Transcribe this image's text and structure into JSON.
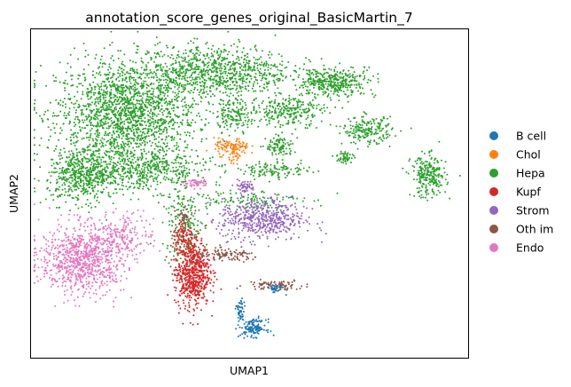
{
  "chart_data": {
    "type": "scatter",
    "title": "annotation_score_genes_original_BasicMartin_7",
    "xlabel": "UMAP1",
    "ylabel": "UMAP2",
    "xlim": [
      0,
      100
    ],
    "ylim": [
      0,
      100
    ],
    "ticks": false,
    "grid": false,
    "legend_position": "right",
    "categories": [
      {
        "name": "B cell",
        "color": "#1f77b4"
      },
      {
        "name": "Chol",
        "color": "#ff7f0e"
      },
      {
        "name": "Hepa",
        "color": "#2ca02c"
      },
      {
        "name": "Kupf",
        "color": "#d62728"
      },
      {
        "name": "Strom",
        "color": "#9467bd"
      },
      {
        "name": "Oth im",
        "color": "#8c564b"
      },
      {
        "name": "Endo",
        "color": "#e377c2"
      }
    ],
    "clusters": [
      {
        "category": "Hepa",
        "cx": 22,
        "cy": 74,
        "sx": 10,
        "sy": 10,
        "n": 1800
      },
      {
        "category": "Hepa",
        "cx": 42,
        "cy": 87,
        "sx": 11,
        "sy": 5,
        "n": 900
      },
      {
        "category": "Hepa",
        "cx": 12,
        "cy": 55,
        "sx": 5,
        "sy": 5,
        "n": 500
      },
      {
        "category": "Hepa",
        "cx": 26,
        "cy": 57,
        "sx": 9,
        "sy": 4,
        "n": 500
      },
      {
        "category": "Hepa",
        "cx": 47,
        "cy": 74,
        "sx": 3,
        "sy": 3,
        "n": 150
      },
      {
        "category": "Hepa",
        "cx": 59,
        "cy": 75,
        "sx": 5,
        "sy": 3,
        "n": 250
      },
      {
        "category": "Hepa",
        "cx": 66,
        "cy": 83,
        "sx": 3,
        "sy": 2,
        "n": 120
      },
      {
        "category": "Hepa",
        "cx": 71,
        "cy": 84,
        "sx": 5,
        "sy": 3,
        "n": 250
      },
      {
        "category": "Hepa",
        "cx": 57,
        "cy": 64,
        "sx": 2,
        "sy": 2,
        "n": 100
      },
      {
        "category": "Hepa",
        "cx": 77,
        "cy": 69,
        "sx": 3.5,
        "sy": 2.5,
        "n": 200
      },
      {
        "category": "Hepa",
        "cx": 91,
        "cy": 55,
        "sx": 2.5,
        "sy": 4,
        "n": 250
      },
      {
        "category": "Hepa",
        "cx": 72,
        "cy": 61,
        "sx": 1.2,
        "sy": 1.2,
        "n": 50
      },
      {
        "category": "Hepa",
        "cx": 56,
        "cy": 57,
        "sx": 5,
        "sy": 1.5,
        "n": 120
      },
      {
        "category": "Hepa",
        "cx": 35,
        "cy": 40,
        "sx": 3,
        "sy": 7,
        "n": 180
      },
      {
        "category": "Hepa",
        "cx": 49,
        "cy": 48,
        "sx": 8,
        "sy": 2,
        "n": 120
      },
      {
        "category": "Chol",
        "cx": 46,
        "cy": 64,
        "sx": 2.5,
        "sy": 1.6,
        "n": 110
      },
      {
        "category": "Chol",
        "cx": 47,
        "cy": 61,
        "sx": 1,
        "sy": 1,
        "n": 20
      },
      {
        "category": "Kupf",
        "cx": 37,
        "cy": 26,
        "sx": 2.5,
        "sy": 6.5,
        "n": 650
      },
      {
        "category": "Kupf",
        "cx": 35,
        "cy": 37,
        "sx": 1.5,
        "sy": 3,
        "n": 80
      },
      {
        "category": "Strom",
        "cx": 53,
        "cy": 42,
        "sx": 6,
        "sy": 4,
        "n": 520
      },
      {
        "category": "Strom",
        "cx": 49,
        "cy": 52,
        "sx": 1.5,
        "sy": 1.2,
        "n": 60
      },
      {
        "category": "Endo",
        "cx": 12,
        "cy": 30,
        "sx": 6,
        "sy": 6.5,
        "n": 900
      },
      {
        "category": "Endo",
        "cx": 22,
        "cy": 38,
        "sx": 4,
        "sy": 4,
        "n": 150
      },
      {
        "category": "Endo",
        "cx": 38,
        "cy": 53,
        "sx": 2,
        "sy": 0.9,
        "n": 50
      },
      {
        "category": "Oth im",
        "cx": 45,
        "cy": 31,
        "sx": 5,
        "sy": 1.2,
        "n": 110
      },
      {
        "category": "Oth im",
        "cx": 56,
        "cy": 22,
        "sx": 4,
        "sy": 1,
        "n": 90
      },
      {
        "category": "Oth im",
        "cx": 35,
        "cy": 43,
        "sx": 0.8,
        "sy": 2,
        "n": 40
      },
      {
        "category": "B cell",
        "cx": 51,
        "cy": 9,
        "sx": 1.8,
        "sy": 1.6,
        "n": 130
      },
      {
        "category": "B cell",
        "cx": 48,
        "cy": 14,
        "sx": 0.6,
        "sy": 2.5,
        "n": 50
      },
      {
        "category": "B cell",
        "cx": 56,
        "cy": 21,
        "sx": 1.2,
        "sy": 0.8,
        "n": 35
      }
    ]
  }
}
